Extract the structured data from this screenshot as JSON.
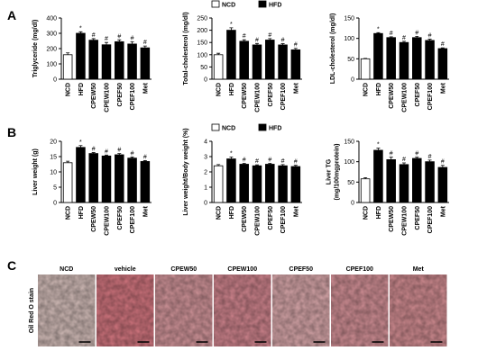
{
  "panels": [
    "A",
    "B",
    "C"
  ],
  "chart_data": [
    {
      "type": "bar",
      "ylabel": "Triglyceride (mg/dl)",
      "categories": [
        "NCD",
        "HFD",
        "CPEW50",
        "CPEW100",
        "CPEF50",
        "CPEF100",
        "Met"
      ],
      "values": [
        160,
        300,
        255,
        225,
        245,
        230,
        205
      ],
      "errors": [
        12,
        10,
        10,
        15,
        12,
        15,
        12
      ],
      "annotations": [
        null,
        "*",
        "#",
        "#",
        "#",
        "#",
        "#"
      ],
      "colors": [
        "#ffffff",
        "#000000",
        "#000000",
        "#000000",
        "#000000",
        "#000000",
        "#000000"
      ],
      "ylim": [
        0,
        400
      ],
      "yticks": [
        0,
        100,
        200,
        300,
        400
      ]
    },
    {
      "type": "bar",
      "ylabel": "Total-cholesterol (mg/dl)",
      "categories": [
        "NCD",
        "HFD",
        "CPEW50",
        "CPEW100",
        "CPEF50",
        "CPEF100",
        "Met"
      ],
      "values": [
        100,
        200,
        155,
        140,
        160,
        140,
        120
      ],
      "errors": [
        6,
        10,
        6,
        6,
        6,
        5,
        6
      ],
      "annotations": [
        null,
        "*",
        "#",
        "#",
        "#",
        "#",
        "#"
      ],
      "colors": [
        "#ffffff",
        "#000000",
        "#000000",
        "#000000",
        "#000000",
        "#000000",
        "#000000"
      ],
      "ylim": [
        0,
        250
      ],
      "yticks": [
        0,
        50,
        100,
        150,
        200,
        250
      ],
      "legend": [
        {
          "name": "NCD",
          "color": "#ffffff"
        },
        {
          "name": "HFD",
          "color": "#000000"
        }
      ]
    },
    {
      "type": "bar",
      "ylabel": "LDL-cholesterol (mg/dl)",
      "categories": [
        "NCD",
        "HFD",
        "CPEW50",
        "CPEW100",
        "CPEF50",
        "CPEF100",
        "Met"
      ],
      "values": [
        50,
        112,
        102,
        90,
        102,
        95,
        75
      ],
      "errors": [
        1,
        2,
        2,
        3,
        3,
        3,
        2
      ],
      "annotations": [
        null,
        "*",
        "#",
        "#",
        "#",
        "#",
        "#"
      ],
      "colors": [
        "#ffffff",
        "#000000",
        "#000000",
        "#000000",
        "#000000",
        "#000000",
        "#000000"
      ],
      "ylim": [
        0,
        150
      ],
      "yticks": [
        0,
        50,
        100,
        150
      ]
    },
    {
      "type": "bar",
      "ylabel": "Liver weight (g)",
      "categories": [
        "NCD",
        "HFD",
        "CPEW50",
        "CPEW100",
        "CPEF50",
        "CPEF100",
        "Met"
      ],
      "values": [
        13,
        18,
        16,
        15.2,
        15.6,
        14.5,
        13.4
      ],
      "errors": [
        0.5,
        0.6,
        0.3,
        0.3,
        0.4,
        0.4,
        0.3
      ],
      "annotations": [
        null,
        "*",
        "#",
        "#",
        "#",
        "#",
        "#"
      ],
      "colors": [
        "#ffffff",
        "#000000",
        "#000000",
        "#000000",
        "#000000",
        "#000000",
        "#000000"
      ],
      "ylim": [
        0,
        20
      ],
      "yticks": [
        0,
        5,
        10,
        15,
        20
      ]
    },
    {
      "type": "bar",
      "ylabel": "Liver weight/Body weight (%)",
      "categories": [
        "NCD",
        "HFD",
        "CPEW50",
        "CPEW100",
        "CPEF50",
        "CPEF100",
        "Met"
      ],
      "values": [
        2.4,
        2.85,
        2.5,
        2.4,
        2.5,
        2.4,
        2.35
      ],
      "errors": [
        0.08,
        0.12,
        0.06,
        0.06,
        0.06,
        0.08,
        0.08
      ],
      "annotations": [
        null,
        "*",
        "#",
        "#",
        "#",
        "#",
        "#"
      ],
      "colors": [
        "#ffffff",
        "#000000",
        "#000000",
        "#000000",
        "#000000",
        "#000000",
        "#000000"
      ],
      "ylim": [
        0,
        4
      ],
      "yticks": [
        0,
        1,
        2,
        3,
        4
      ],
      "legend": [
        {
          "name": "NCD",
          "color": "#ffffff"
        },
        {
          "name": "HFD",
          "color": "#000000"
        }
      ]
    },
    {
      "type": "bar",
      "ylabel": "Liver TG\n(mg/100mgprotein)",
      "categories": [
        "NCD",
        "HFD",
        "CPEW50",
        "CPEW100",
        "CPEF50",
        "CPEF100",
        "Met"
      ],
      "values": [
        58,
        128,
        105,
        93,
        108,
        100,
        86
      ],
      "errors": [
        3,
        5,
        6,
        4,
        3,
        4,
        5
      ],
      "annotations": [
        null,
        "*",
        "#",
        "#",
        "#",
        "#",
        "#"
      ],
      "colors": [
        "#ffffff",
        "#000000",
        "#000000",
        "#000000",
        "#000000",
        "#000000",
        "#000000"
      ],
      "ylim": [
        0,
        150
      ],
      "yticks": [
        0,
        50,
        100,
        150
      ]
    }
  ],
  "histology": {
    "ylabel": "Oil Red O stain",
    "labels": [
      "NCD",
      "vehicle",
      "CPEW50",
      "CPEW100",
      "CPEF50",
      "CPEF100",
      "Met"
    ]
  }
}
